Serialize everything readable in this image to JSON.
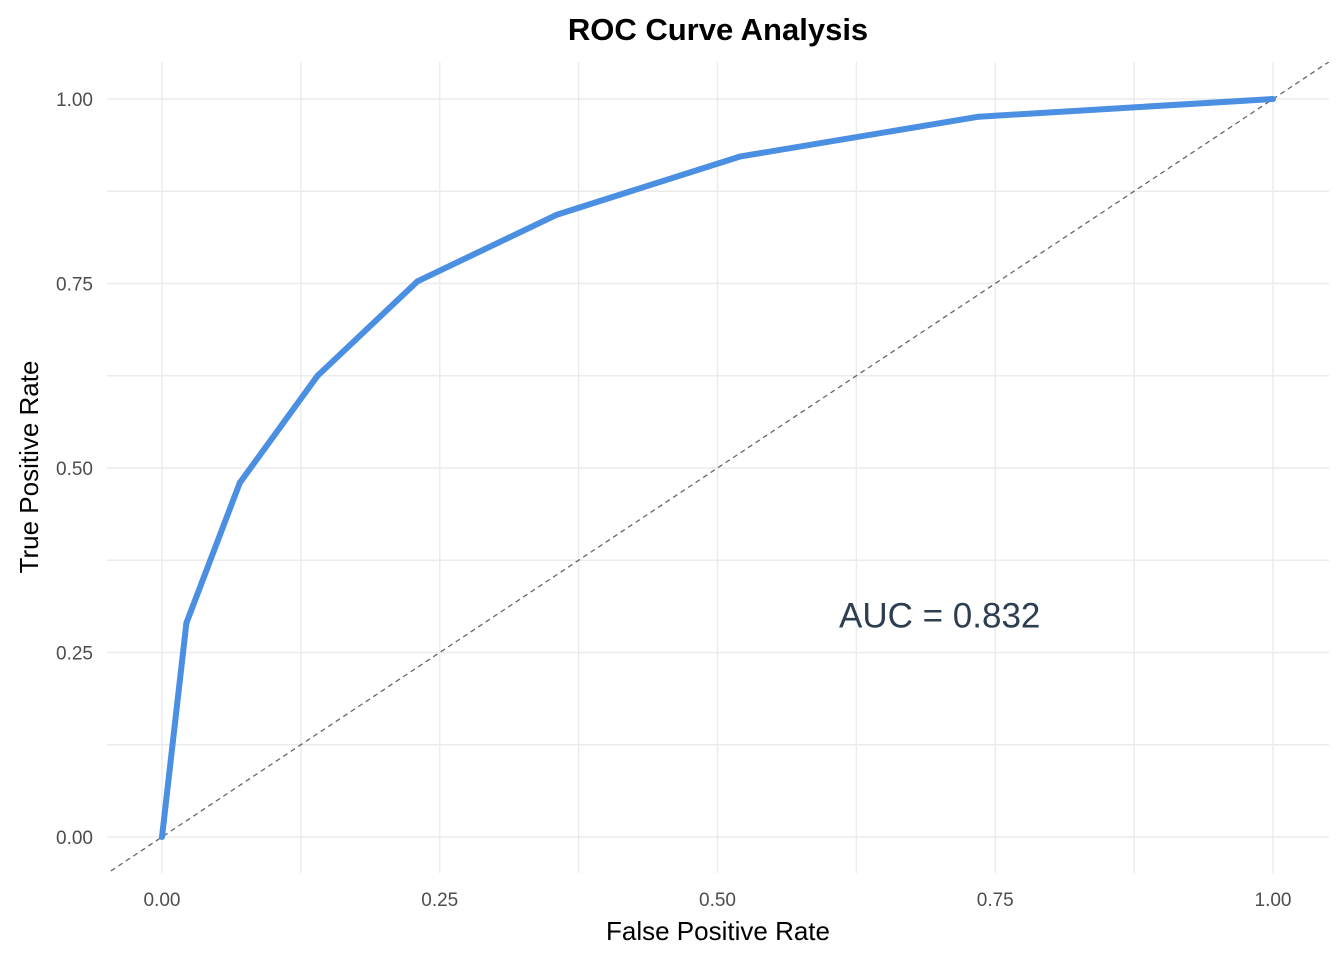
{
  "chart_data": {
    "type": "line",
    "title": "ROC Curve Analysis",
    "xlabel": "False Positive Rate",
    "ylabel": "True Positive Rate",
    "xlim": [
      -0.05,
      1.05
    ],
    "ylim": [
      -0.05,
      1.05
    ],
    "grid": true,
    "x_ticks": [
      0,
      0.25,
      0.5,
      0.75,
      1
    ],
    "x_tick_labels": [
      "0.00",
      "0.25",
      "0.50",
      "0.75",
      "1.00"
    ],
    "y_ticks": [
      0,
      0.25,
      0.5,
      0.75,
      1
    ],
    "y_tick_labels": [
      "0.00",
      "0.25",
      "0.50",
      "0.75",
      "1.00"
    ],
    "series": [
      {
        "color": "#4a8fe2",
        "style": "solid",
        "points": [
          {
            "x": 0.0,
            "y": 0.0
          },
          {
            "x": 0.022,
            "y": 0.29
          },
          {
            "x": 0.07,
            "y": 0.48
          },
          {
            "x": 0.14,
            "y": 0.625
          },
          {
            "x": 0.23,
            "y": 0.753
          },
          {
            "x": 0.355,
            "y": 0.843
          },
          {
            "x": 0.52,
            "y": 0.922
          },
          {
            "x": 0.735,
            "y": 0.976
          },
          {
            "x": 1.0,
            "y": 1.0
          }
        ]
      }
    ],
    "reference_line": {
      "kind": "diagonal",
      "color": "#666666",
      "style": "dashed"
    },
    "annotations": [
      {
        "text": "AUC = 0.832",
        "x": 0.7,
        "y": 0.3,
        "color": "#2c3e50"
      }
    ]
  }
}
